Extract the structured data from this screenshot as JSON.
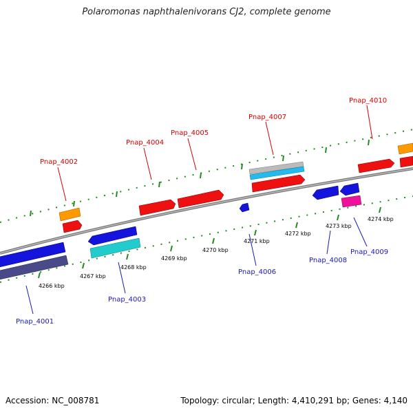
{
  "title": "Polaromonas naphthalenivorans CJ2, complete genome",
  "footer": {
    "accession": "Accession: NC_008781",
    "summary": "Topology: circular; Length: 4,410,291 bp; Genes: 4,140"
  },
  "ticks": [
    "4266 kbp",
    "4267 kbp",
    "4268 kbp",
    "4269 kbp",
    "4270 kbp",
    "4271 kbp",
    "4272 kbp",
    "4273 kbp",
    "4274 kbp"
  ],
  "top_labels": [
    "Pnap_4002",
    "Pnap_4004",
    "Pnap_4005",
    "Pnap_4007",
    "Pnap_4010"
  ],
  "bottom_labels": [
    "Pnap_4001",
    "Pnap_4003",
    "Pnap_4006",
    "Pnap_4008",
    "Pnap_4009"
  ],
  "colors": {
    "forward": "#ee1111",
    "reverse": "#1414dd",
    "orange": "#ff9900",
    "cyan": "#22cccc",
    "lightblue": "#22bbee",
    "gray": "#bbbbbb",
    "navy": "#4a4a8a",
    "magenta": "#ee1199",
    "tick": "#228822",
    "backbone": "#888888",
    "top_label": "#d40000",
    "bottom_label": "#1a1ab0"
  }
}
